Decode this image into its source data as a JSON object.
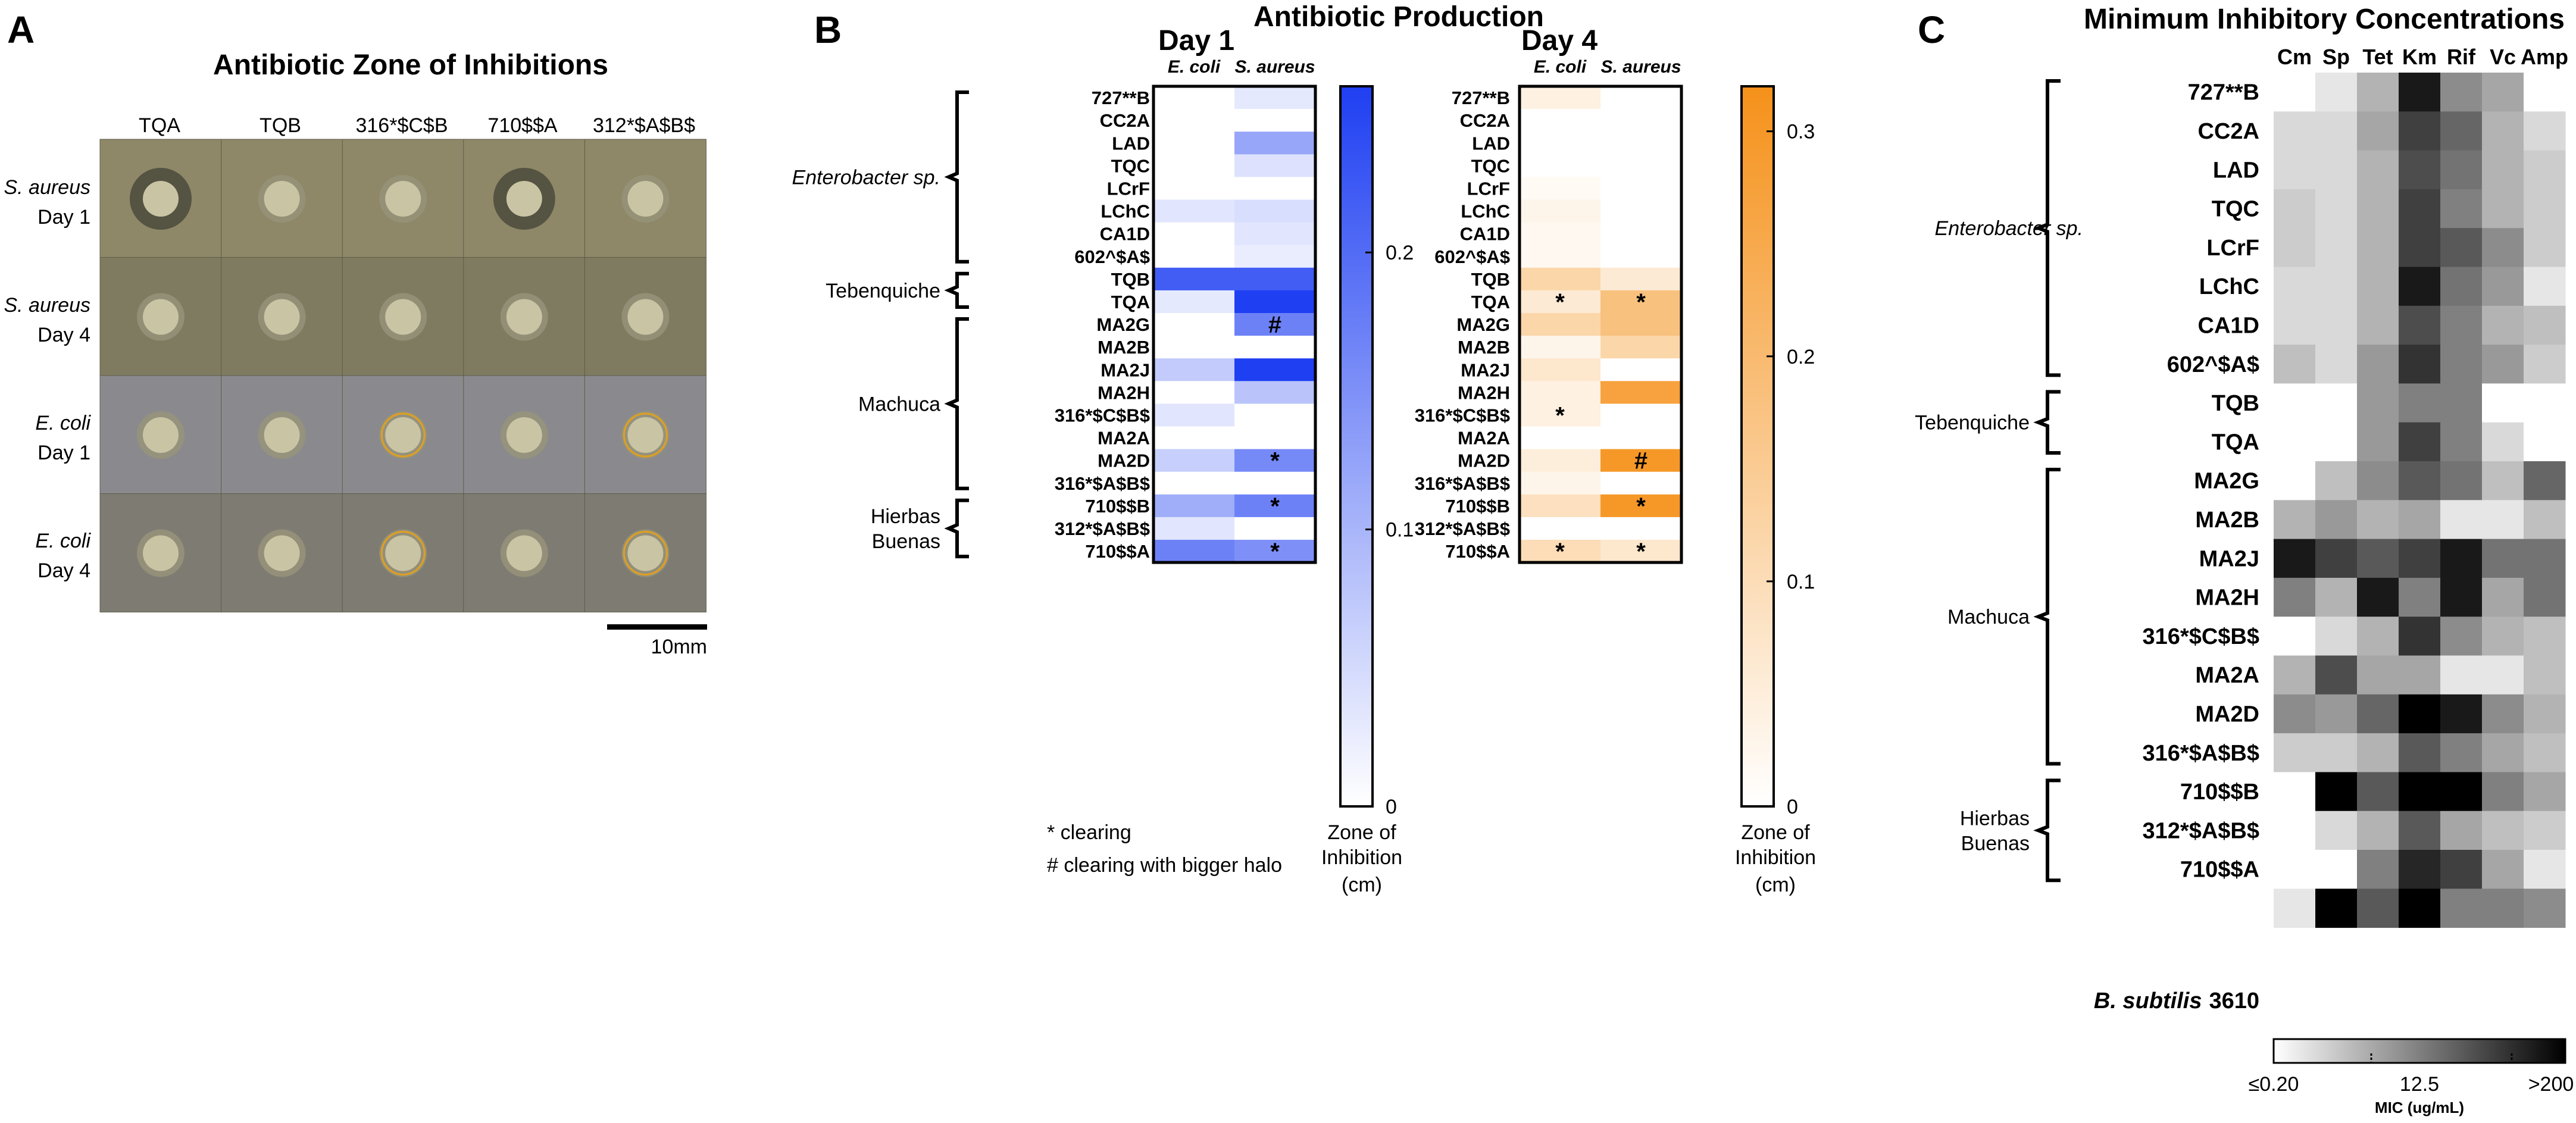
{
  "figure": {
    "panel_a": {
      "letter": "A",
      "title": "Antibiotic Zone of Inhibitions",
      "columns": [
        "TQA",
        "TQB",
        "316*$C$B",
        "710$$A",
        "312*$A$B$"
      ],
      "rows": [
        {
          "organism": "S. aureus",
          "day": "Day 1"
        },
        {
          "organism": "S. aureus",
          "day": "Day 4"
        },
        {
          "organism": "E. coli",
          "day": "Day 1"
        },
        {
          "organism": "E. coli",
          "day": "Day 4"
        }
      ],
      "scale_bar": "10mm"
    },
    "panel_b": {
      "letter": "B",
      "title": "Antibiotic Production",
      "legend_star": "* clearing",
      "legend_hash": "# clearing with bigger halo",
      "colorbar_label": [
        "Zone of",
        "Inhibition",
        "(cm)"
      ]
    },
    "panel_c": {
      "letter": "C",
      "title": "Minimum Inhibitory Concentrations",
      "reference_strain_italic": "B. subtilis",
      "reference_strain_id": "3610",
      "colorbar_ticks": [
        "≤0.20",
        "12.5",
        ">200"
      ],
      "colorbar_title": "MIC (ug/mL)"
    }
  },
  "colors": {
    "day1_max": "#1f3ff2",
    "day4_max": "#f5911a",
    "mic_min": "#ffffff",
    "mic_max": "#000000"
  },
  "chart_data": [
    {
      "type": "heatmap",
      "title": "Day 1",
      "columns": [
        "E. coli",
        "S. aureus"
      ],
      "rows": [
        "727**B",
        "CC2A",
        "LAD",
        "TQC",
        "LCrF",
        "LChC",
        "CA1D",
        "602^$A$",
        "TQB",
        "TQA",
        "MA2G",
        "MA2B",
        "MA2J",
        "MA2H",
        "316*$C$B$",
        "MA2A",
        "MA2D",
        "316*$A$B$",
        "710$$B",
        "312*$A$B$",
        "710$$A"
      ],
      "groups": [
        {
          "name": "Enterobacter sp.",
          "italic": true,
          "from": 0,
          "to": 7
        },
        {
          "name": "Tebenquiche",
          "italic": false,
          "from": 8,
          "to": 9
        },
        {
          "name": "Machuca",
          "italic": false,
          "from": 10,
          "to": 17
        },
        {
          "name": "Hierbas Buenas",
          "italic": false,
          "from": 18,
          "to": 20
        }
      ],
      "values": [
        [
          0.0,
          0.03
        ],
        [
          0.0,
          0.0
        ],
        [
          0.0,
          0.12
        ],
        [
          0.0,
          0.04
        ],
        [
          0.0,
          0.0
        ],
        [
          0.035,
          0.045
        ],
        [
          0.0,
          0.035
        ],
        [
          0.0,
          0.025
        ],
        [
          0.22,
          0.22
        ],
        [
          0.03,
          0.27
        ],
        [
          0.0,
          0.17
        ],
        [
          0.0,
          0.0
        ],
        [
          0.07,
          0.28
        ],
        [
          0.0,
          0.08
        ],
        [
          0.035,
          0.0
        ],
        [
          0.0,
          0.0
        ],
        [
          0.065,
          0.16
        ],
        [
          0.0,
          0.0
        ],
        [
          0.11,
          0.17
        ],
        [
          0.035,
          0.0
        ],
        [
          0.17,
          0.15
        ]
      ],
      "annotations": [
        {
          "row": 10,
          "col": 1,
          "mark": "#"
        },
        {
          "row": 16,
          "col": 1,
          "mark": "*"
        },
        {
          "row": 18,
          "col": 1,
          "mark": "*"
        },
        {
          "row": 20,
          "col": 1,
          "mark": "*"
        }
      ],
      "colorbar": {
        "min": 0,
        "max": 0.26,
        "ticks": [
          0,
          0.1,
          0.2
        ],
        "tick_labels": [
          "0",
          "0.1",
          "0.2"
        ]
      }
    },
    {
      "type": "heatmap",
      "title": "Day 4",
      "columns": [
        "E. coli",
        "S. aureus"
      ],
      "rows": [
        "727**B",
        "CC2A",
        "LAD",
        "TQC",
        "LCrF",
        "LChC",
        "CA1D",
        "602^$A$",
        "TQB",
        "TQA",
        "MA2G",
        "MA2B",
        "MA2J",
        "MA2H",
        "316*$C$B$",
        "MA2A",
        "MA2D",
        "316*$A$B$",
        "710$$B",
        "312*$A$B$",
        "710$$A"
      ],
      "values": [
        [
          0.04,
          0.0
        ],
        [
          0.0,
          0.0
        ],
        [
          0.0,
          0.0
        ],
        [
          0.0,
          0.0
        ],
        [
          0.015,
          0.0
        ],
        [
          0.03,
          0.0
        ],
        [
          0.02,
          0.0
        ],
        [
          0.02,
          0.0
        ],
        [
          0.12,
          0.06
        ],
        [
          0.06,
          0.18
        ],
        [
          0.12,
          0.18
        ],
        [
          0.03,
          0.12
        ],
        [
          0.07,
          0.0
        ],
        [
          0.04,
          0.27
        ],
        [
          0.04,
          0.0
        ],
        [
          0.0,
          0.0
        ],
        [
          0.05,
          0.3
        ],
        [
          0.03,
          0.0
        ],
        [
          0.09,
          0.3
        ],
        [
          0.0,
          0.0
        ],
        [
          0.1,
          0.07
        ]
      ],
      "annotations": [
        {
          "row": 9,
          "col": 0,
          "mark": "*"
        },
        {
          "row": 9,
          "col": 1,
          "mark": "*"
        },
        {
          "row": 14,
          "col": 0,
          "mark": "*"
        },
        {
          "row": 16,
          "col": 1,
          "mark": "#"
        },
        {
          "row": 18,
          "col": 1,
          "mark": "*"
        },
        {
          "row": 20,
          "col": 0,
          "mark": "*"
        },
        {
          "row": 20,
          "col": 1,
          "mark": "*"
        }
      ],
      "colorbar": {
        "min": 0,
        "max": 0.32,
        "ticks": [
          0,
          0.1,
          0.2,
          0.3
        ],
        "tick_labels": [
          "0",
          "0.1",
          "0.2",
          "0.3"
        ]
      }
    },
    {
      "type": "heatmap",
      "title": "Minimum Inhibitory Concentrations",
      "columns": [
        "Cm",
        "Sp",
        "Tet",
        "Km",
        "Rif",
        "Vc",
        "Amp"
      ],
      "rows": [
        "727**B",
        "CC2A",
        "LAD",
        "TQC",
        "LCrF",
        "LChC",
        "CA1D",
        "602^$A$",
        "TQB",
        "TQA",
        "MA2G",
        "MA2B",
        "MA2J",
        "MA2H",
        "316*$C$B$",
        "MA2A",
        "MA2D",
        "316*$A$B$",
        "710$$B",
        "312*$A$B$",
        "710$$A",
        "B. subtilis 3610"
      ],
      "groups": [
        {
          "name": "Enterobacter sp.",
          "italic": true,
          "from": 0,
          "to": 7
        },
        {
          "name": "Tebenquiche",
          "italic": false,
          "from": 8,
          "to": 9
        },
        {
          "name": "Machuca",
          "italic": false,
          "from": 10,
          "to": 17
        },
        {
          "name": "Hierbas Buenas",
          "italic": false,
          "from": 18,
          "to": 20
        }
      ],
      "scale_note": "0 = <=0.20 ug/mL, 1 = >200 ug/mL (grayscale intensity)",
      "values": [
        [
          0.0,
          0.1,
          0.3,
          0.9,
          0.45,
          0.35,
          0.0
        ],
        [
          0.15,
          0.15,
          0.35,
          0.75,
          0.6,
          0.3,
          0.15
        ],
        [
          0.15,
          0.15,
          0.3,
          0.7,
          0.55,
          0.3,
          0.2
        ],
        [
          0.2,
          0.15,
          0.3,
          0.75,
          0.5,
          0.3,
          0.2
        ],
        [
          0.2,
          0.15,
          0.3,
          0.75,
          0.65,
          0.45,
          0.2
        ],
        [
          0.15,
          0.15,
          0.3,
          0.9,
          0.55,
          0.4,
          0.1
        ],
        [
          0.15,
          0.15,
          0.3,
          0.7,
          0.5,
          0.3,
          0.25
        ],
        [
          0.25,
          0.15,
          0.4,
          0.8,
          0.5,
          0.4,
          0.2
        ],
        [
          0.0,
          0.0,
          0.4,
          0.5,
          0.5,
          0.0,
          0.0
        ],
        [
          0.0,
          0.0,
          0.4,
          0.75,
          0.5,
          0.15,
          0.0
        ],
        [
          0.0,
          0.25,
          0.45,
          0.65,
          0.55,
          0.25,
          0.6
        ],
        [
          0.3,
          0.4,
          0.3,
          0.35,
          0.1,
          0.1,
          0.25
        ],
        [
          0.9,
          0.75,
          0.65,
          0.75,
          0.9,
          0.55,
          0.55
        ],
        [
          0.5,
          0.3,
          0.9,
          0.5,
          0.9,
          0.35,
          0.55
        ],
        [
          0.0,
          0.15,
          0.3,
          0.8,
          0.45,
          0.3,
          0.25
        ],
        [
          0.3,
          0.7,
          0.35,
          0.35,
          0.1,
          0.1,
          0.25
        ],
        [
          0.45,
          0.4,
          0.6,
          1.0,
          0.9,
          0.45,
          0.3
        ],
        [
          0.2,
          0.2,
          0.3,
          0.65,
          0.5,
          0.35,
          0.25
        ],
        [
          0.0,
          1.0,
          0.65,
          1.0,
          1.0,
          0.5,
          0.35
        ],
        [
          0.0,
          0.15,
          0.3,
          0.65,
          0.35,
          0.25,
          0.2
        ],
        [
          0.0,
          0.0,
          0.5,
          0.85,
          0.75,
          0.35,
          0.1
        ],
        [
          0.1,
          1.0,
          0.65,
          1.0,
          0.5,
          0.5,
          0.45
        ]
      ]
    }
  ]
}
